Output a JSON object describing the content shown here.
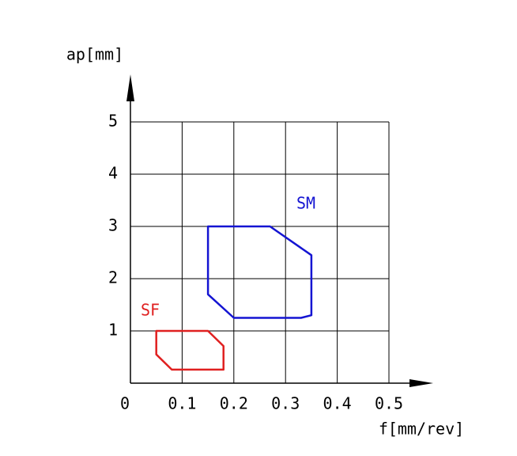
{
  "chart_data": {
    "type": "region",
    "x_label": "f[mm/rev]",
    "y_label": "ap[mm]",
    "xlim": [
      0,
      0.5
    ],
    "ylim": [
      0,
      5
    ],
    "xticks": [
      0,
      0.1,
      0.2,
      0.3,
      0.4,
      0.5
    ],
    "yticks": [
      1,
      2,
      3,
      4,
      5
    ],
    "grid": true,
    "series": [
      {
        "name": "SF",
        "color": "#e02020",
        "x": [
          0.05,
          0.15,
          0.18,
          0.18,
          0.08,
          0.05
        ],
        "values": [
          1.0,
          1.0,
          0.71,
          0.26,
          0.26,
          0.55
        ]
      },
      {
        "name": "SM",
        "color": "#1414d2",
        "x": [
          0.15,
          0.27,
          0.35,
          0.35,
          0.33,
          0.2,
          0.15
        ],
        "values": [
          3.0,
          3.0,
          2.45,
          1.3,
          1.25,
          1.25,
          1.7
        ]
      }
    ]
  }
}
